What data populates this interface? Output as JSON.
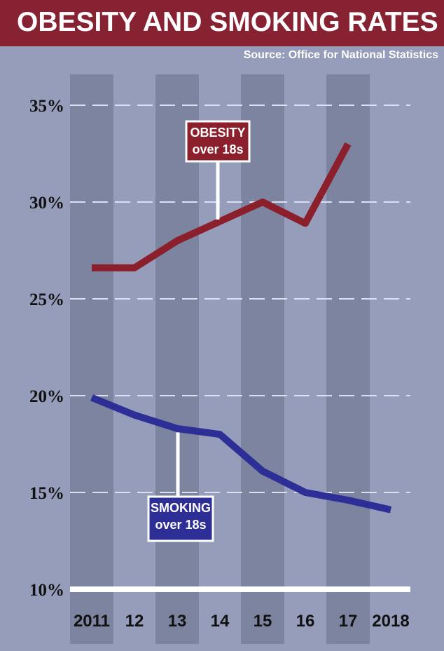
{
  "header": {
    "title": "OBESITY AND SMOKING RATES",
    "source": "Source: Office for National Statistics"
  },
  "colors": {
    "background": "#969dba",
    "band": "#7d849f",
    "title_bar": "#862232",
    "obesity": "#8b1f2b",
    "smoking": "#2e2f96",
    "grid": "#dcdff0",
    "baseline": "#ffffff"
  },
  "chart_data": {
    "type": "line",
    "title": "OBESITY AND SMOKING RATES",
    "categories": [
      "2011",
      "12",
      "13",
      "14",
      "15",
      "16",
      "17",
      "2018"
    ],
    "ylim": [
      10,
      35
    ],
    "yticks": [
      "35%",
      "30%",
      "25%",
      "20%",
      "15%",
      "10%"
    ],
    "ytick_values": [
      35,
      30,
      25,
      20,
      15,
      10
    ],
    "grid": "dashed horizontal",
    "series": [
      {
        "name": "OBESITY over 18s",
        "label_lines": [
          "OBESITY",
          "over 18s"
        ],
        "color": "#8b1f2b",
        "values": [
          26.6,
          26.6,
          28.0,
          29.0,
          30.0,
          28.9,
          33.0,
          null
        ]
      },
      {
        "name": "SMOKING over 18s",
        "label_lines": [
          "SMOKING",
          "over 18s"
        ],
        "color": "#2e2f96",
        "values": [
          19.9,
          19.0,
          18.3,
          18.0,
          16.1,
          15.0,
          14.6,
          14.1
        ]
      }
    ]
  }
}
